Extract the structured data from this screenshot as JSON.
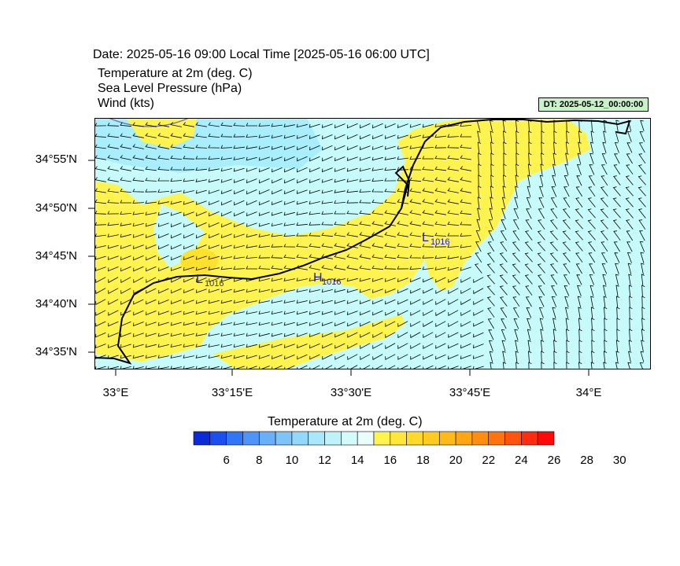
{
  "header": {
    "date_line": "Date: 2025-05-16  09:00 Local Time [2025-05-16  06:00 UTC]",
    "variables": [
      "Temperature at 2m   (deg. C)",
      "Sea Level Pressure   (hPa)",
      "Wind   (kts)"
    ],
    "dt_stamp": "DT: 2025-05-12_00:00:00"
  },
  "map": {
    "y_ticks": [
      "34°55'N",
      "34°50'N",
      "34°45'N",
      "34°40'N",
      "34°35'N"
    ],
    "x_ticks": [
      "33°E",
      "33°15'E",
      "33°30'E",
      "33°45'E",
      "34°E"
    ],
    "pressure_centers": [
      {
        "type": "L",
        "value": "1016"
      },
      {
        "type": "H",
        "value": "1016"
      },
      {
        "type": "L",
        "value": "1016"
      }
    ],
    "colors": {
      "warm": "#fff44f",
      "cool": "#c7fbfb",
      "cool2": "#a9eefc",
      "warm2": "#ffe22c",
      "coast": "#000000",
      "isobar": "#7070b0",
      "center_label": "#1a1adb"
    }
  },
  "colorbar": {
    "title": "Temperature at 2m  (deg. C)",
    "labels": [
      "6",
      "8",
      "10",
      "12",
      "14",
      "16",
      "18",
      "20",
      "22",
      "24",
      "26",
      "28",
      "30"
    ],
    "colors": [
      "#0a2bd6",
      "#1d4ff0",
      "#3276f6",
      "#4f95f8",
      "#6aaff9",
      "#7fc4f8",
      "#93d8f8",
      "#a8e8fa",
      "#bef3fb",
      "#d3fbfb",
      "#e9fdfd",
      "#fff44f",
      "#ffe73a",
      "#ffda2a",
      "#ffcb1f",
      "#ffba16",
      "#ffa612",
      "#ff8e10",
      "#ff7410",
      "#ff5410",
      "#ff2d10",
      "#ff0a0a"
    ]
  }
}
